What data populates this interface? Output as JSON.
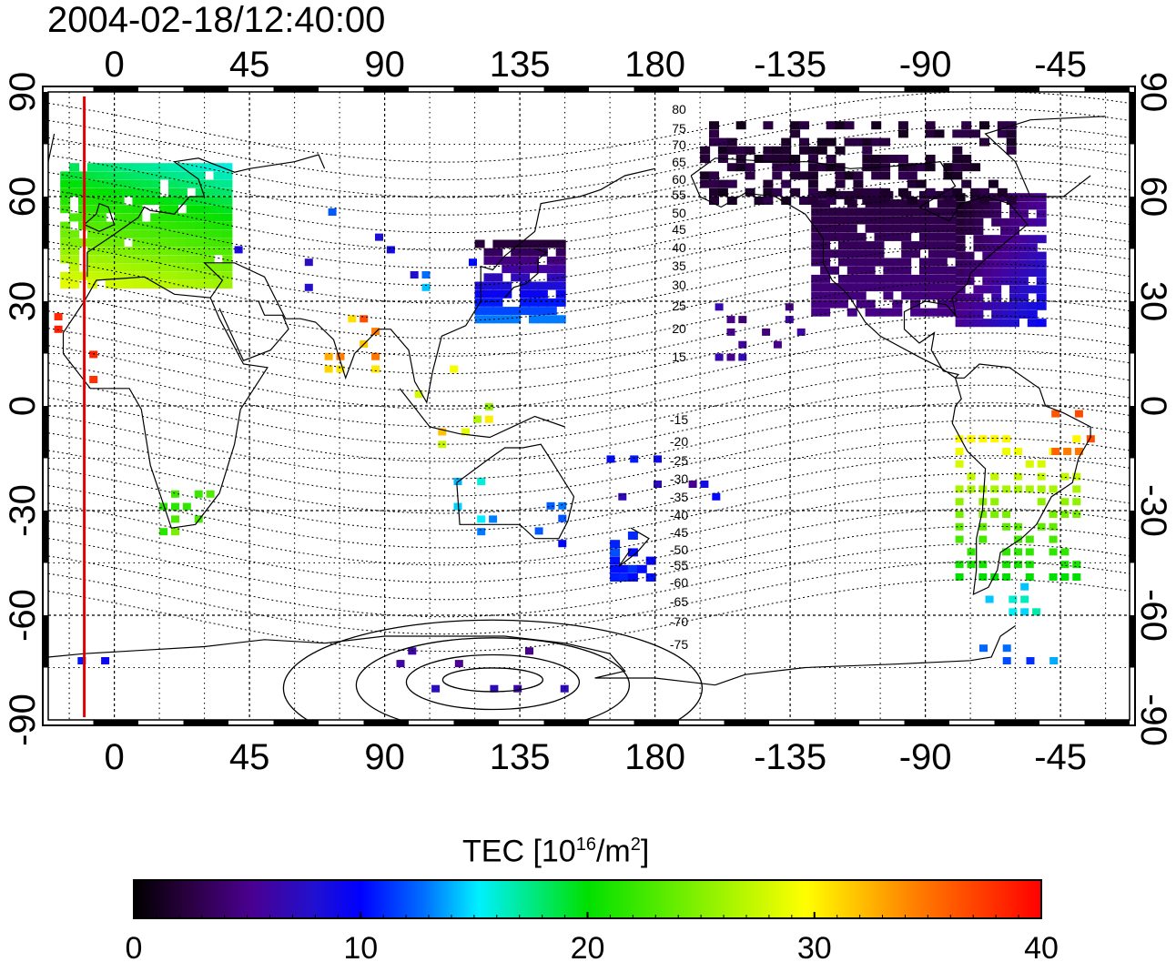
{
  "title": "2004-02-18/12:40:00",
  "map": {
    "lon_ticks_top": [
      "0",
      "45",
      "90",
      "135",
      "180",
      "-135",
      "-90",
      "-45"
    ],
    "lon_ticks_bottom": [
      "0",
      "45",
      "90",
      "135",
      "180",
      "-135",
      "-90",
      "-45"
    ],
    "lat_ticks_left": [
      "90",
      "60",
      "30",
      "0",
      "-30",
      "-60",
      "-90"
    ],
    "lat_ticks_right": [
      "90",
      "60",
      "30",
      "0",
      "-30",
      "-60",
      "-90"
    ],
    "contour_labels_north": [
      "80",
      "75",
      "70",
      "65",
      "60",
      "55",
      "50",
      "45",
      "40",
      "35",
      "30",
      "25",
      "20",
      "15"
    ],
    "contour_labels_south": [
      "-15",
      "-20",
      "-25",
      "-30",
      "-35",
      "-40",
      "-45",
      "-50",
      "-55",
      "-60",
      "-65",
      "-70",
      "-75"
    ],
    "marker_longitude": -10,
    "marker_color": "#e00000"
  },
  "colorbar": {
    "title_prefix": "TEC  [10",
    "title_sup1": "16",
    "title_mid": "/m",
    "title_sup2": "2",
    "title_suffix": "]",
    "ticks": [
      "0",
      "10",
      "20",
      "30",
      "40"
    ],
    "range": [
      0,
      40
    ]
  },
  "tec_regions": [
    {
      "region": "Europe",
      "value": 20
    },
    {
      "region": "North America",
      "value": 4
    },
    {
      "region": "Canada Arctic",
      "value": 1
    },
    {
      "region": "East Asia",
      "value": 8
    },
    {
      "region": "South America",
      "value": 26
    },
    {
      "region": "Brazil",
      "value": 34
    },
    {
      "region": "Australia",
      "value": 11
    },
    {
      "region": "New Zealand",
      "value": 10
    },
    {
      "region": "Southern Africa",
      "value": 22
    },
    {
      "region": "West Africa",
      "value": 38
    },
    {
      "region": "India",
      "value": 34
    },
    {
      "region": "Antarctica",
      "value": 7
    }
  ]
}
